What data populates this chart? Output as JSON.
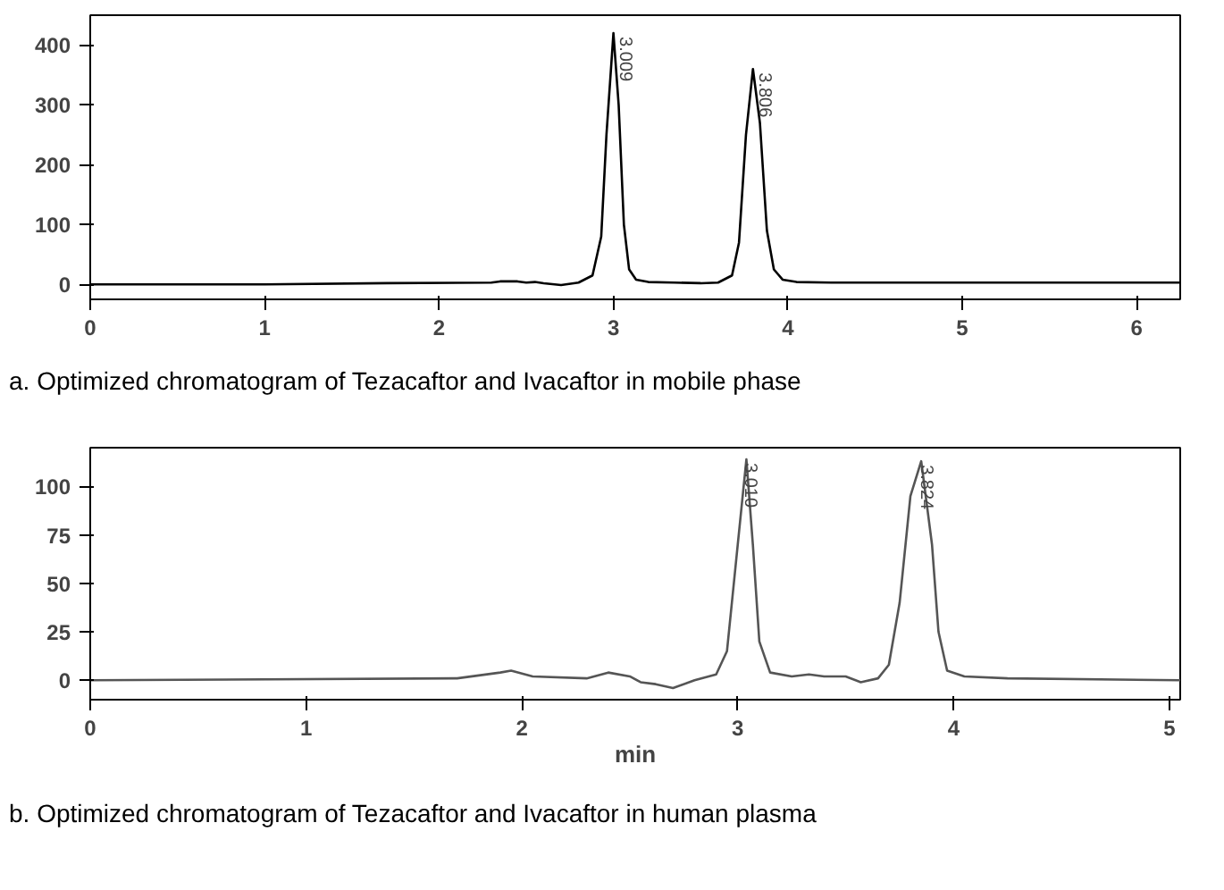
{
  "chart_data": [
    {
      "type": "line",
      "xlim": [
        0,
        6.25
      ],
      "ylim": [
        -25,
        450
      ],
      "xticks": [
        0,
        1,
        2,
        3,
        4,
        5,
        6
      ],
      "yticks": [
        0,
        100,
        200,
        300,
        400
      ],
      "marker": "none",
      "line_style": "solid",
      "series": [
        {
          "color": "#000000",
          "x": [
            0,
            1,
            1.7,
            2.3,
            2.35,
            2.45,
            2.5,
            2.55,
            2.6,
            2.7,
            2.8,
            2.88,
            2.93,
            2.96,
            3.0,
            3.03,
            3.06,
            3.09,
            3.13,
            3.2,
            3.35,
            3.5,
            3.6,
            3.68,
            3.72,
            3.76,
            3.8,
            3.84,
            3.88,
            3.92,
            3.97,
            4.05,
            4.25,
            5,
            6.25
          ],
          "values": [
            0,
            0,
            2,
            3,
            5,
            5,
            3,
            4,
            2,
            -1,
            3,
            15,
            80,
            250,
            420,
            300,
            100,
            25,
            8,
            4,
            3,
            2,
            3,
            15,
            70,
            250,
            360,
            270,
            90,
            25,
            8,
            4,
            3,
            3,
            3
          ]
        }
      ],
      "annotations": [
        {
          "text": "3.009",
          "x": 3.009,
          "y": 420
        },
        {
          "text": "3.806",
          "x": 3.806,
          "y": 360
        },
        "a. Optimized chromatogram of Tezacaftor and Ivacaftor in mobile phase"
      ]
    },
    {
      "type": "line",
      "xlabel": "min",
      "xlim": [
        0,
        5.05
      ],
      "ylim": [
        -10,
        120
      ],
      "xticks": [
        0,
        1,
        2,
        3,
        4,
        5
      ],
      "yticks": [
        0,
        25,
        50,
        75,
        100
      ],
      "marker": "none",
      "line_style": "solid",
      "series": [
        {
          "color": "#555555",
          "x": [
            0,
            1.7,
            1.9,
            1.95,
            2.05,
            2.3,
            2.4,
            2.5,
            2.55,
            2.62,
            2.7,
            2.8,
            2.9,
            2.95,
            3.0,
            3.04,
            3.07,
            3.1,
            3.15,
            3.25,
            3.33,
            3.4,
            3.5,
            3.57,
            3.65,
            3.7,
            3.75,
            3.8,
            3.85,
            3.9,
            3.93,
            3.97,
            4.05,
            4.25,
            5.05
          ],
          "values": [
            0,
            1,
            4,
            5,
            2,
            1,
            4,
            2,
            -1,
            -2,
            -4,
            0,
            3,
            15,
            70,
            114,
            70,
            20,
            4,
            2,
            3,
            2,
            2,
            -1,
            1,
            8,
            40,
            95,
            113,
            70,
            25,
            5,
            2,
            1,
            0
          ]
        }
      ],
      "annotations": [
        {
          "text": "3.010",
          "x": 3.01,
          "y": 114
        },
        {
          "text": "3.824",
          "x": 3.824,
          "y": 113
        },
        "b. Optimized chromatogram of Tezacaftor and Ivacaftor in human plasma"
      ]
    }
  ]
}
